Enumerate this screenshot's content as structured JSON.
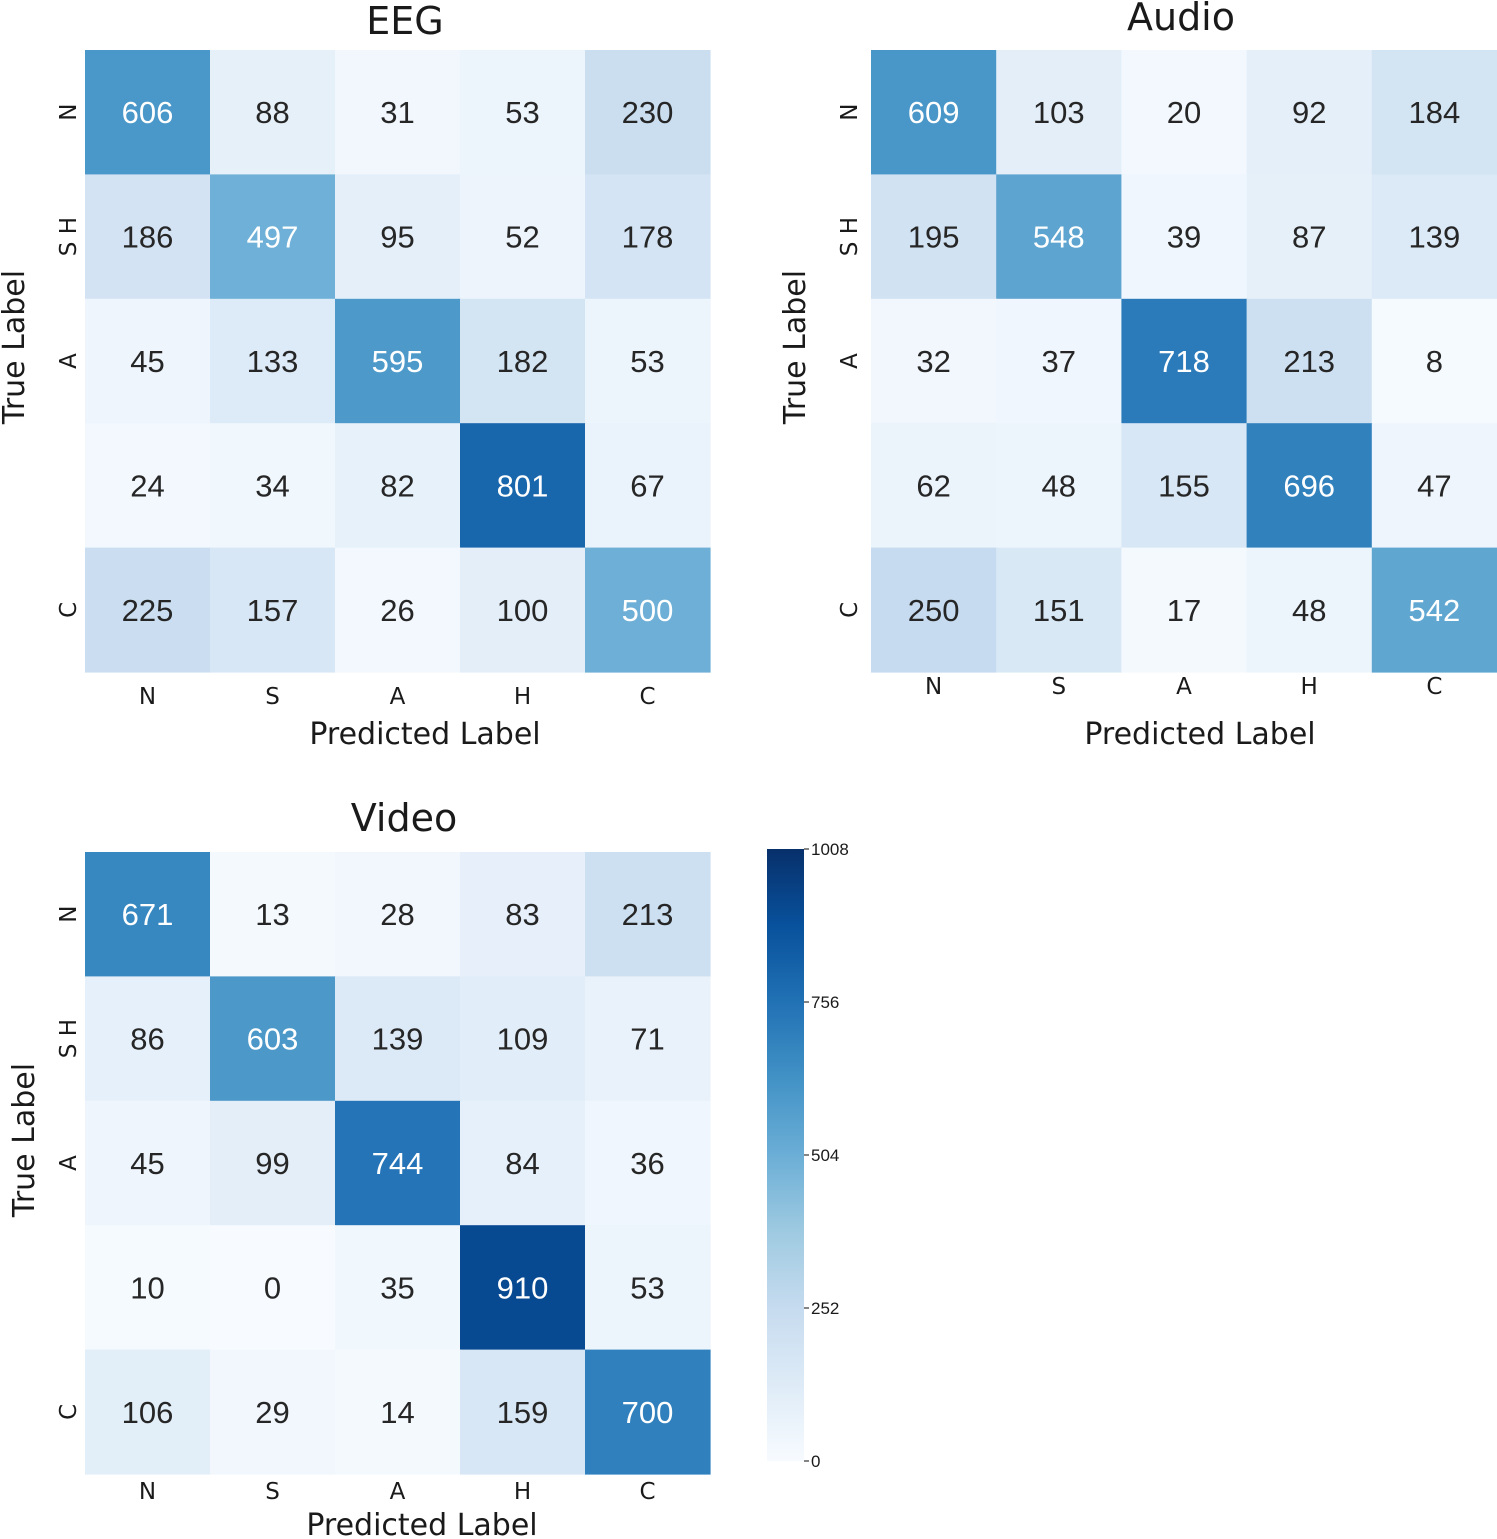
{
  "chart_data": [
    {
      "type": "heatmap",
      "title": "EEG",
      "xlabel": "Predicted Label",
      "ylabel": "True Label",
      "x_ticks": [
        "N",
        "S",
        "A",
        "H",
        "C"
      ],
      "y_ticks": [
        "N",
        "S H",
        "A",
        "",
        "C"
      ],
      "values": [
        [
          606,
          88,
          31,
          53,
          230
        ],
        [
          186,
          497,
          95,
          52,
          178
        ],
        [
          45,
          133,
          595,
          182,
          53
        ],
        [
          24,
          34,
          82,
          801,
          67
        ],
        [
          225,
          157,
          26,
          100,
          500
        ]
      ]
    },
    {
      "type": "heatmap",
      "title": "Audio",
      "xlabel": "Predicted Label",
      "ylabel": "True Label",
      "x_ticks": [
        "N",
        "S",
        "A",
        "H",
        "C"
      ],
      "y_ticks": [
        "N",
        "S H",
        "A",
        "",
        "C"
      ],
      "values": [
        [
          609,
          103,
          20,
          92,
          184
        ],
        [
          195,
          548,
          39,
          87,
          139
        ],
        [
          32,
          37,
          718,
          213,
          8
        ],
        [
          62,
          48,
          155,
          696,
          47
        ],
        [
          250,
          151,
          17,
          48,
          542
        ]
      ]
    },
    {
      "type": "heatmap",
      "title": "Video",
      "xlabel": "Predicted Label",
      "ylabel": "True Label",
      "x_ticks": [
        "N",
        "S",
        "A",
        "H",
        "C"
      ],
      "y_ticks": [
        "N",
        "S H",
        "A",
        "",
        "C"
      ],
      "values": [
        [
          671,
          13,
          28,
          83,
          213
        ],
        [
          86,
          603,
          139,
          109,
          71
        ],
        [
          45,
          99,
          744,
          84,
          36
        ],
        [
          10,
          0,
          35,
          910,
          53
        ],
        [
          106,
          29,
          14,
          159,
          700
        ]
      ]
    }
  ],
  "colorbar": {
    "min": 0,
    "max": 1008,
    "ticks": [
      "1008",
      "756",
      "504",
      "252",
      "0"
    ],
    "colormap": "Blues",
    "colors": [
      "#f7fbff",
      "#deebf7",
      "#c6dbef",
      "#9ecae1",
      "#6baed6",
      "#4292c6",
      "#2171b5",
      "#08519c",
      "#08306b"
    ]
  }
}
